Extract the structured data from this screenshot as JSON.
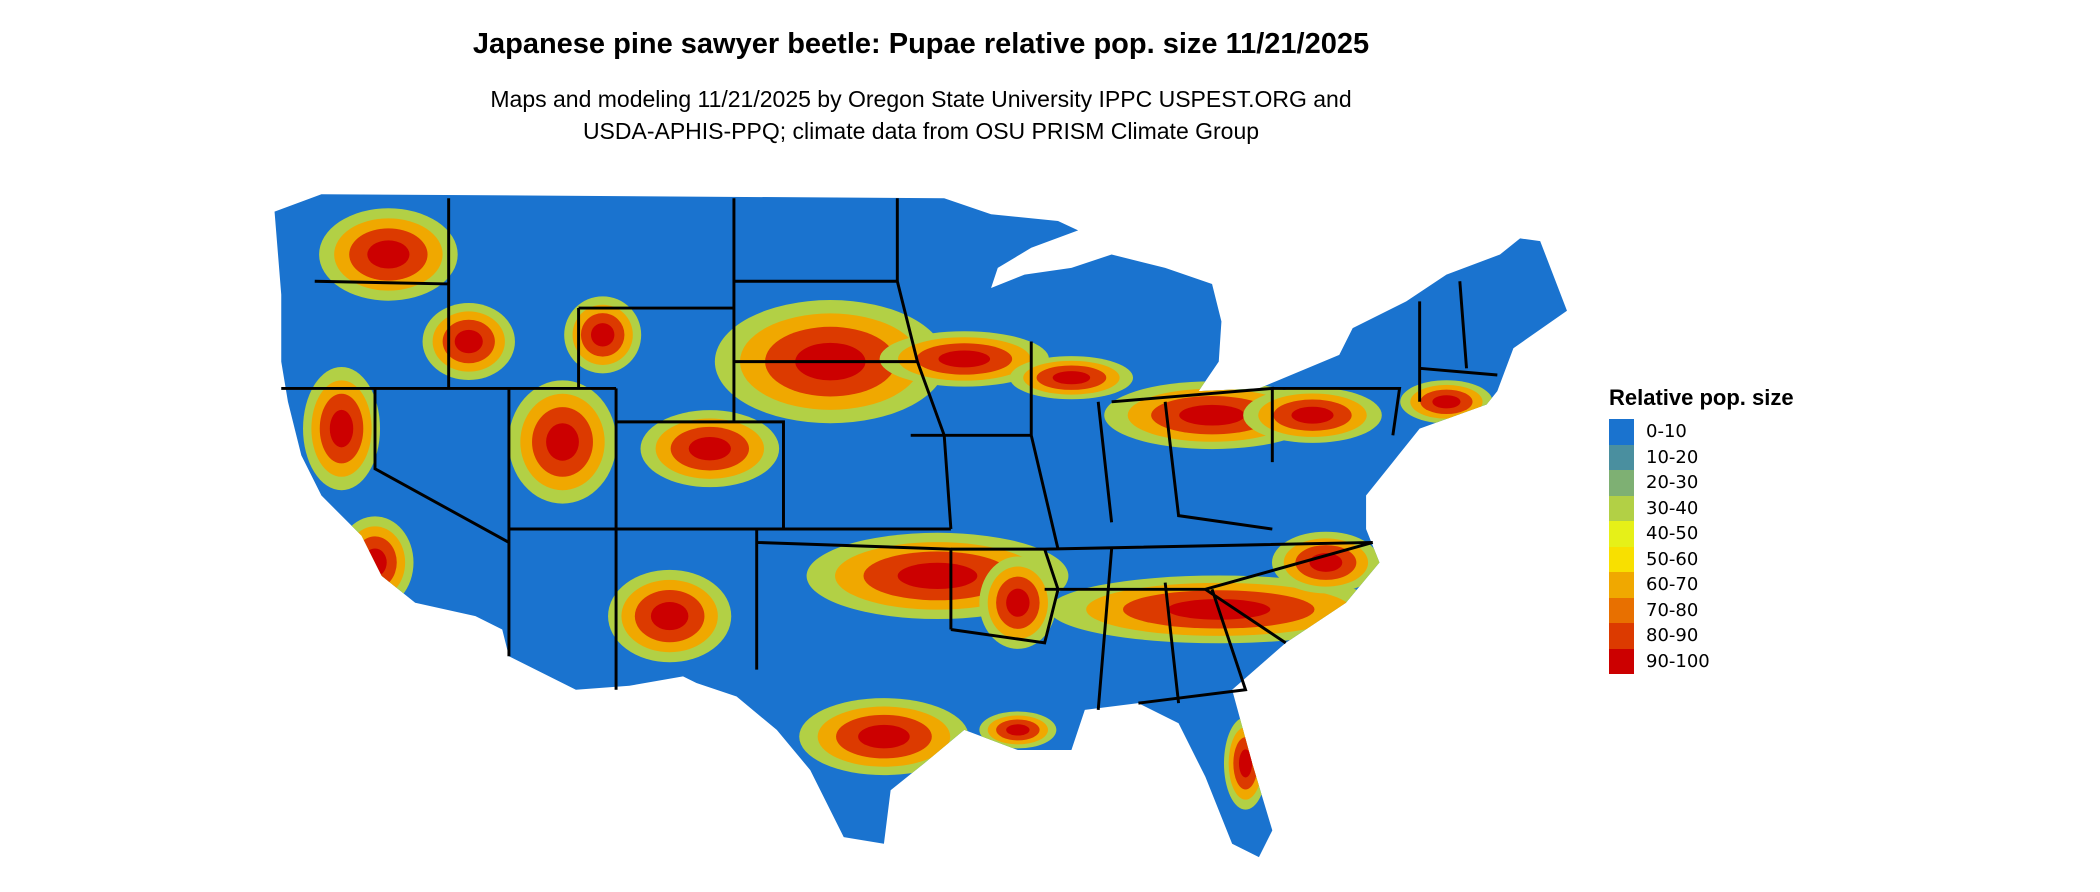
{
  "title": "Japanese pine sawyer beetle: Pupae relative pop. size 11/21/2025",
  "subtitle_lines": [
    "Maps and modeling 11/21/2025 by Oregon State University IPPC USPEST.ORG and",
    "USDA-APHIS-PPQ; climate data from OSU PRISM Climate Group"
  ],
  "legend": {
    "title": "Relative pop. size",
    "items": [
      {
        "label": "0-10",
        "color": "#1a73cf"
      },
      {
        "label": "10-20",
        "color": "#4a8f9f"
      },
      {
        "label": "20-30",
        "color": "#7eb073"
      },
      {
        "label": "30-40",
        "color": "#b2d045"
      },
      {
        "label": "40-50",
        "color": "#e6f018"
      },
      {
        "label": "50-60",
        "color": "#f8e000"
      },
      {
        "label": "60-70",
        "color": "#f0a800"
      },
      {
        "label": "70-80",
        "color": "#e87000"
      },
      {
        "label": "80-90",
        "color": "#dc3a00"
      },
      {
        "label": "90-100",
        "color": "#cc0000"
      }
    ]
  },
  "map": {
    "region": "Contiguous United States",
    "base_color": "#1a73cf",
    "border_color": "#000000"
  }
}
